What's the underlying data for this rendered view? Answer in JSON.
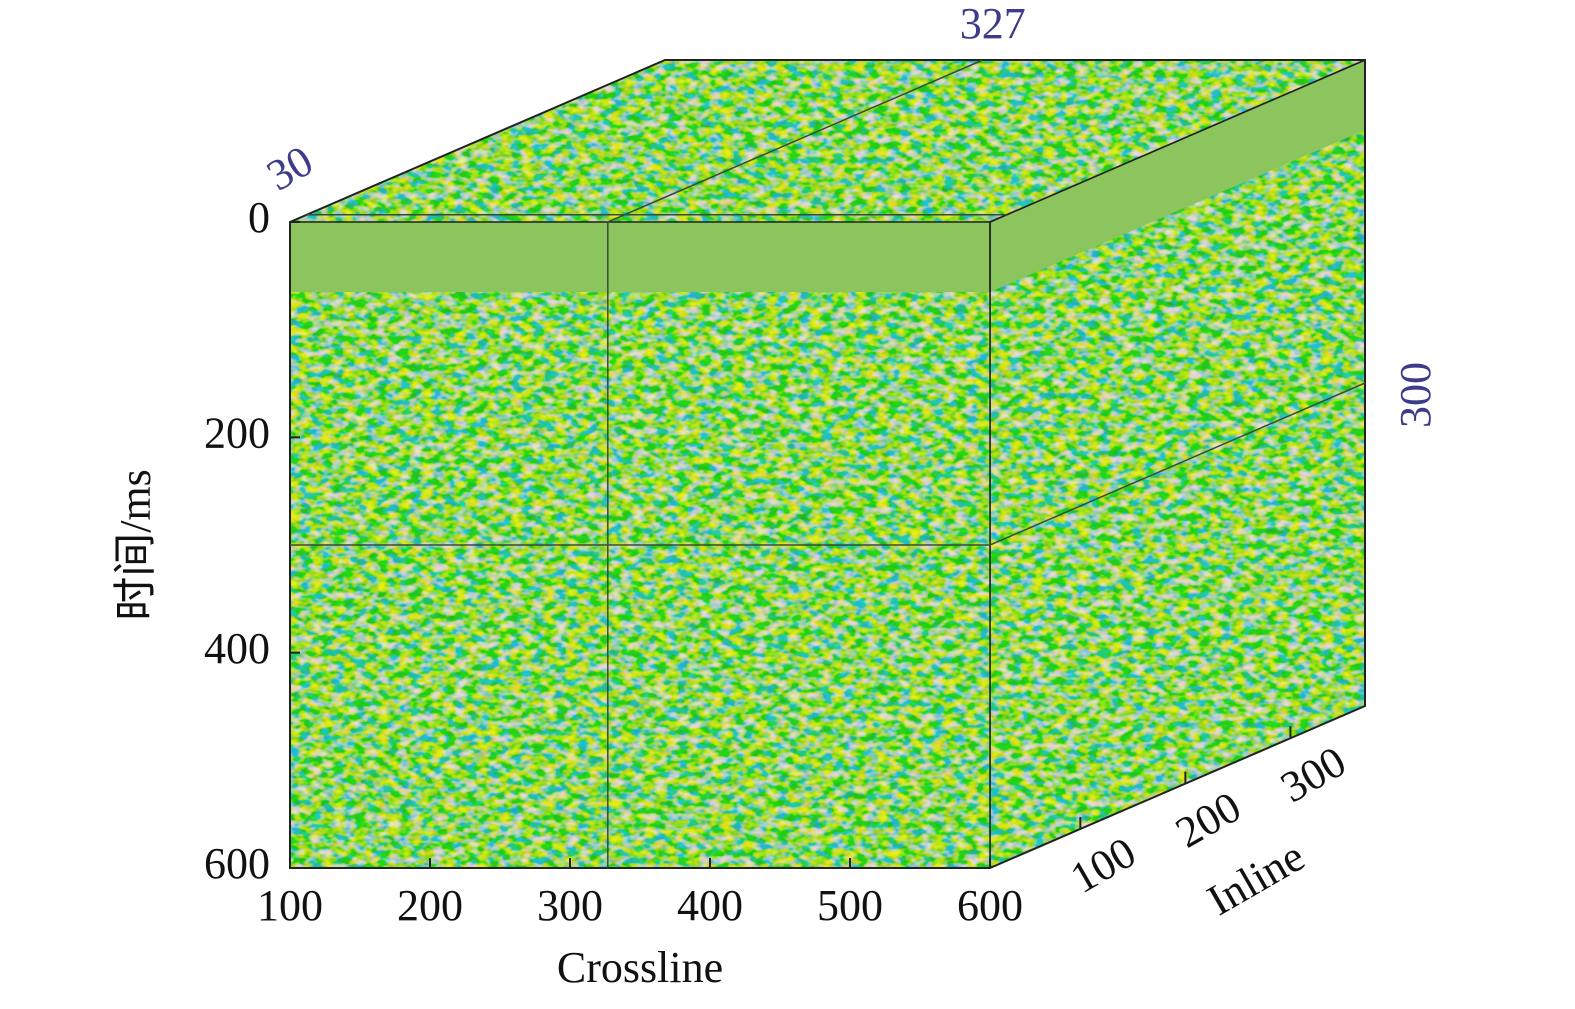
{
  "chart_data": {
    "type": "cube",
    "xlabel": "Crossline",
    "ylabel": "时间/ms",
    "zlabel": "Inline",
    "xlim": [
      100,
      600
    ],
    "xticks": [
      100,
      200,
      300,
      400,
      500,
      600
    ],
    "ylim": [
      0,
      600
    ],
    "yticks": [
      0,
      200,
      400,
      600
    ],
    "zlim": [
      14,
      371
    ],
    "zticks": [
      100,
      200,
      300
    ],
    "slices": {
      "crossline": 327,
      "inline": 30,
      "time": 300
    },
    "slice_color": "#3c3c8a",
    "face_color": "#8cc45e"
  }
}
